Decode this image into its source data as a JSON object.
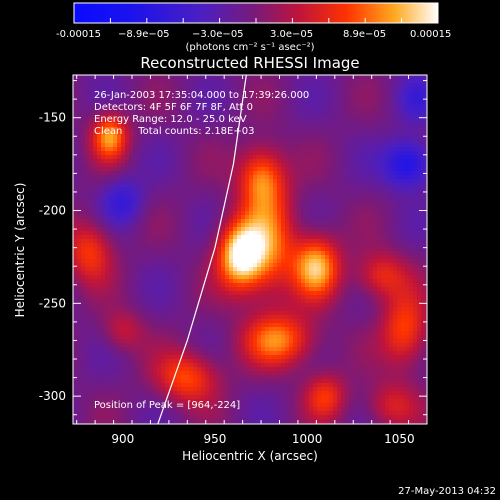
{
  "chart_data": {
    "type": "heatmap",
    "title": "Reconstructed RHESSI Image",
    "xlabel": "Heliocentric X (arcsec)",
    "ylabel": "Heliocentric Y (arcsec)",
    "xlim": [
      873,
      1065
    ],
    "ylim": [
      -315,
      -127
    ],
    "x_ticks": [
      900,
      950,
      1000,
      1050
    ],
    "y_ticks": [
      -150,
      -200,
      -250,
      -300
    ],
    "colorbar": {
      "range": [
        -0.00015,
        0.00015
      ],
      "tick_labels": [
        "-0.00015",
        "−8.9e−05",
        "−3.0e−05",
        "3.0e−05",
        "8.9e−05",
        "0.00015"
      ],
      "units": "(photons cm⁻² s⁻¹ asec⁻²)"
    },
    "annotations": [
      "26-Jan-2003 17:35:04.000 to 17:39:26.000",
      "Detectors: 4F 5F 6F 7F 8F, Att 0",
      "Energy Range: 12.0 - 25.0 keV",
      "Clean     Total counts: 2.18E+03"
    ],
    "peak_text": "Position of Peak = [964,-224]",
    "peak": {
      "x": 964,
      "y": -224
    },
    "limb_curve": [
      [
        919,
        -315
      ],
      [
        935,
        -270
      ],
      [
        950,
        -220
      ],
      [
        960,
        -175
      ],
      [
        967,
        -127
      ]
    ],
    "sources": [
      {
        "x": 964,
        "y": -224,
        "sx": 9,
        "sy": 13,
        "amp": 1.0
      },
      {
        "x": 980,
        "y": -218,
        "sx": 10,
        "sy": 22,
        "amp": 0.55
      },
      {
        "x": 975,
        "y": -182,
        "sx": 9,
        "sy": 12,
        "amp": 0.62
      },
      {
        "x": 1005,
        "y": -230,
        "sx": 9,
        "sy": 12,
        "amp": 0.78
      },
      {
        "x": 985,
        "y": -270,
        "sx": 14,
        "sy": 10,
        "amp": 0.62
      },
      {
        "x": 893,
        "y": -160,
        "sx": 7,
        "sy": 9,
        "amp": 0.7
      },
      {
        "x": 882,
        "y": -222,
        "sx": 9,
        "sy": 12,
        "amp": 0.5
      },
      {
        "x": 935,
        "y": -290,
        "sx": 12,
        "sy": 10,
        "amp": 0.55
      },
      {
        "x": 1040,
        "y": -235,
        "sx": 10,
        "sy": 9,
        "amp": 0.45
      },
      {
        "x": 1053,
        "y": -265,
        "sx": 9,
        "sy": 14,
        "amp": 0.55
      },
      {
        "x": 1010,
        "y": -300,
        "sx": 8,
        "sy": 9,
        "amp": 0.45
      },
      {
        "x": 1045,
        "y": -305,
        "sx": 10,
        "sy": 9,
        "amp": 0.35
      },
      {
        "x": 900,
        "y": -265,
        "sx": 8,
        "sy": 8,
        "amp": 0.3
      },
      {
        "x": 1055,
        "y": -175,
        "sx": 9,
        "sy": 9,
        "amp": -0.6
      },
      {
        "x": 900,
        "y": -195,
        "sx": 8,
        "sy": 9,
        "amp": -0.35
      },
      {
        "x": 1060,
        "y": -140,
        "sx": 8,
        "sy": 9,
        "amp": -0.25
      }
    ]
  },
  "timestamp": "27-May-2013 04:32"
}
